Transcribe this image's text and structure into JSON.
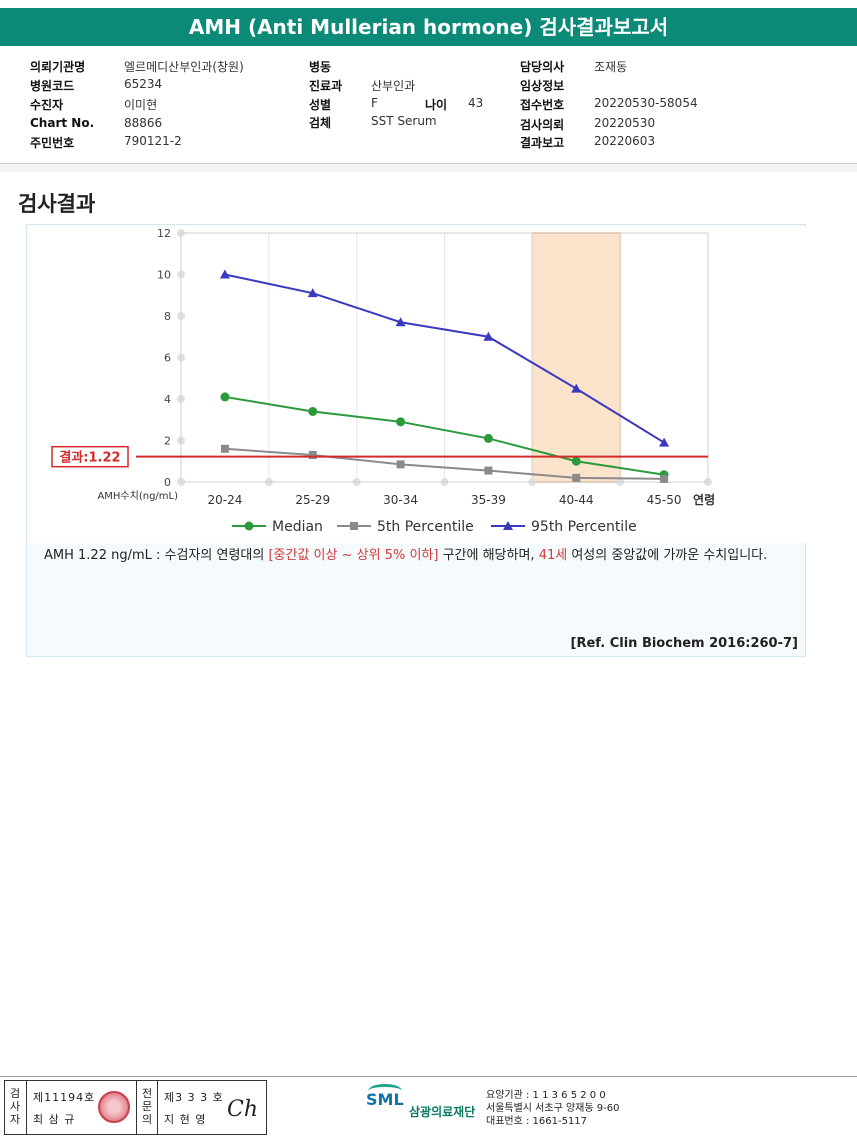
{
  "title": "AMH (Anti Mullerian hormone) 검사결과보고서",
  "info": {
    "hospital_label": "의뢰기관명",
    "hospital": "엘르메디산부인과(창원)",
    "hospital_code_label": "병원코드",
    "hospital_code": "65234",
    "patient_label": "수진자",
    "patient": "이미현",
    "chart_label": "Chart No.",
    "chart_no": "88866",
    "id_label": "주민번호",
    "id_no": "790121-2",
    "ward_label": "병동",
    "ward": "",
    "dept_label": "진료과",
    "dept": "산부인과",
    "sex_label": "성별",
    "sex": "F",
    "age_label": "나이",
    "age": "43",
    "specimen_label": "검체",
    "specimen": "SST Serum",
    "doctor_label": "담당의사",
    "doctor": "조재동",
    "clinical_label": "임상정보",
    "clinical": "",
    "receipt_label": "접수번호",
    "receipt": "20220530-58054",
    "request_label": "검사의뢰",
    "request": "20220530",
    "report_label": "결과보고",
    "report": "20220603"
  },
  "section_title": "검사결과",
  "chart_data": {
    "type": "line",
    "categories": [
      "20-24",
      "25-29",
      "30-34",
      "35-39",
      "40-44",
      "45-50"
    ],
    "xlabel": "연령",
    "ylabel": "AMH수치(ng/mL)",
    "ylim": [
      0,
      12
    ],
    "yticks": [
      "0",
      "2",
      "4",
      "6",
      "8",
      "10",
      "12"
    ],
    "grid": true,
    "legend_position": "bottom",
    "highlight_category": "40-44",
    "series": [
      {
        "name": "Median",
        "values": [
          4.1,
          3.4,
          2.9,
          2.1,
          1.0,
          0.35
        ],
        "color": "#2a9a3a",
        "marker": "circle"
      },
      {
        "name": "5th Percentile",
        "values": [
          1.6,
          1.3,
          0.85,
          0.55,
          0.2,
          0.15
        ],
        "color": "#8a8a8a",
        "marker": "square"
      },
      {
        "name": "95th Percentile",
        "values": [
          10.0,
          9.1,
          7.7,
          7.0,
          4.5,
          1.9
        ],
        "color": "#3a3ac0",
        "marker": "triangle"
      }
    ],
    "result_line": {
      "label": "결과:1.22",
      "value": 1.22,
      "color": "#d32a2a"
    }
  },
  "note": {
    "part1": "AMH  1.22 ng/mL : 수검자의 연령대의 ",
    "highlight1": "[중간값 이상 ~ 상위 5% 이하]",
    "part2": " 구간에 해당하며, ",
    "highlight2": "41세",
    "part3": " 여성의 중앙값에 가까운 수치입니다."
  },
  "reference": "[Ref. Clin Biochem 2016:260-7]",
  "footer": {
    "examiner_label": "검사자",
    "examiner_no": "제11194호",
    "examiner_name": "최 삼 규",
    "doctor_label": "전문의",
    "doctor_no": "제3 3 3 호",
    "doctor_name": "지 현 영",
    "signature": "Ch",
    "logo": "SML",
    "org_name": "삼광의료재단",
    "addr1": "요양기관 : 1 1 3 6 5 2 0 0",
    "addr2": "서울특별시 서초구 양재동 9-60",
    "addr3": "대표번호 : 1661-5117"
  }
}
